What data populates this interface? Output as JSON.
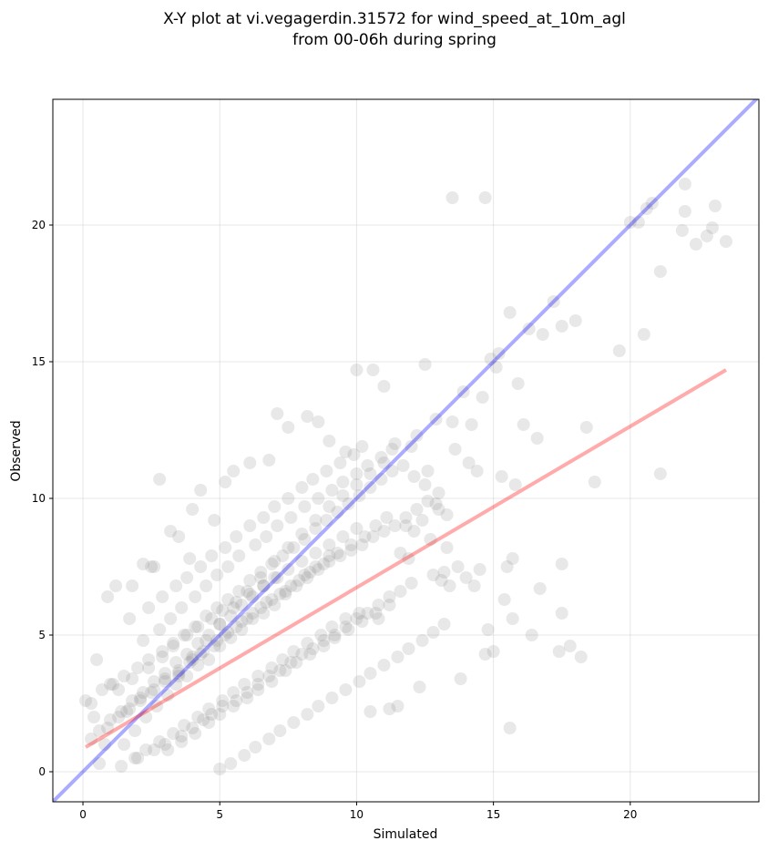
{
  "chart_data": {
    "type": "scatter",
    "title": [
      "X-Y plot at vi.vegagerdin.31572 for wind_speed_at_10m_agl",
      "from 00-06h during spring"
    ],
    "xlabel": "Simulated",
    "ylabel": "Observed",
    "xlim": [
      -1.1,
      24.7
    ],
    "ylim": [
      -1.1,
      24.6
    ],
    "xticks": [
      0,
      5,
      10,
      15,
      20
    ],
    "yticks": [
      0,
      5,
      10,
      15,
      20
    ],
    "grid": true,
    "point_color": "#808080",
    "point_opacity": 0.18,
    "identity_line": {
      "color": "#0000ff",
      "opacity": 0.33,
      "points": [
        [
          -1.1,
          -1.1
        ],
        [
          24.7,
          24.7
        ]
      ]
    },
    "regression_line": {
      "color": "#ff0000",
      "opacity": 0.33,
      "points": [
        [
          0.1,
          0.9
        ],
        [
          23.5,
          14.7
        ]
      ]
    },
    "series": [
      {
        "x": [
          13.5,
          14.7,
          22.0,
          23.1,
          20.8,
          20.6,
          20.3,
          20.0,
          21.9,
          22.0,
          22.4,
          23.5,
          23.0,
          22.8,
          21.1,
          20.5,
          17.2,
          15.6,
          13.5,
          19.6,
          18.0,
          17.5,
          16.8,
          16.3,
          15.2,
          14.9,
          12.5,
          10.0,
          10.6,
          11.0,
          21.1,
          18.7,
          17.5,
          15.7,
          15.5,
          13.2,
          13.1,
          12.8,
          13.4,
          10.1,
          10.8,
          14.5,
          16.7,
          17.8,
          17.4,
          17.5,
          18.2,
          18.4,
          15.6,
          15.7,
          14.8,
          15.0,
          14.7,
          13.8,
          12.3,
          11.5,
          11.2,
          10.5,
          1.8,
          1.2,
          0.9,
          0.5,
          0.3,
          0.1,
          0.4,
          0.8,
          1.0,
          2.8,
          2.2,
          2.5,
          1.7,
          0.6,
          4.3,
          4.0,
          3.2,
          3.5,
          2.6,
          3.9,
          4.8,
          5.5,
          6.8,
          7.1,
          8.2,
          8.6,
          9.0,
          9.6,
          10.2,
          7.5,
          6.1,
          5.2,
          12.2,
          12.9,
          13.9,
          14.2,
          14.6,
          15.1,
          15.9,
          16.1,
          16.6,
          12.0,
          11.4,
          12.6,
          13.6,
          14.1,
          14.4,
          15.3,
          15.8,
          13.0,
          12.4,
          11.8,
          12.1,
          12.7,
          13.3,
          11.6,
          11.9,
          13.7,
          14.0,
          14.3,
          15.4,
          16.4,
          1.5,
          1.9,
          2.3,
          2.7,
          3.1,
          3.4,
          3.8,
          4.2,
          4.6,
          5.0,
          5.4,
          5.8,
          6.2,
          6.6,
          7.0,
          7.4,
          7.8,
          8.2,
          8.6,
          9.0,
          9.4,
          9.8,
          10.2,
          10.6,
          11.0,
          11.4,
          11.8,
          12.2,
          12.6,
          13.0,
          1.3,
          1.8,
          2.4,
          2.9,
          3.3,
          3.7,
          4.1,
          4.5,
          4.9,
          5.3,
          5.7,
          6.1,
          6.5,
          6.9,
          7.3,
          7.7,
          8.1,
          8.5,
          8.9,
          9.3,
          9.7,
          10.1,
          10.5,
          10.9,
          11.3,
          11.7,
          12.1,
          12.5,
          12.9,
          13.3,
          2.0,
          2.6,
          3.0,
          3.6,
          4.0,
          4.4,
          4.7,
          5.1,
          5.6,
          6.0,
          6.4,
          6.8,
          7.2,
          7.6,
          8.0,
          8.4,
          8.8,
          9.2,
          9.6,
          10.0,
          10.4,
          10.8,
          11.2,
          11.6,
          12.0,
          2.2,
          2.8,
          3.2,
          3.6,
          4.1,
          4.5,
          4.9,
          5.3,
          5.7,
          6.3,
          6.7,
          7.1,
          7.6,
          8.1,
          8.6,
          9.1,
          9.5,
          10.0,
          10.4,
          10.9,
          11.3,
          1.6,
          2.1,
          2.5,
          3.0,
          3.5,
          3.9,
          4.3,
          4.8,
          5.2,
          5.6,
          6.0,
          6.5,
          6.9,
          7.4,
          7.9,
          8.3,
          8.8,
          9.3,
          9.8,
          10.3,
          10.7,
          11.1,
          1.4,
          1.9,
          2.3,
          2.8,
          3.3,
          3.7,
          4.2,
          4.6,
          5.1,
          5.5,
          5.9,
          6.4,
          6.9,
          7.3,
          7.7,
          8.2,
          8.7,
          9.1,
          9.6,
          2.4,
          2.9,
          3.4,
          3.8,
          4.3,
          4.7,
          5.2,
          5.6,
          6.1,
          6.6,
          7.0,
          7.5,
          8.0,
          8.4,
          8.9,
          9.4,
          9.9,
          0.9,
          1.3,
          1.7,
          2.1,
          2.6,
          3.0,
          3.5,
          4.0,
          4.4,
          4.9,
          5.3,
          5.8,
          6.2,
          6.7,
          7.2,
          7.6,
          8.1,
          8.5,
          9.0,
          3.1,
          3.6,
          4.1,
          4.6,
          5.0,
          5.5,
          6.0,
          6.4,
          6.9,
          7.4,
          7.8,
          8.3,
          8.8,
          9.2,
          9.7,
          10.2,
          10.7,
          11.2,
          0.7,
          1.1,
          1.5,
          2.0,
          2.4,
          2.9,
          3.3,
          3.8,
          4.2,
          4.7,
          5.1,
          5.6,
          6.1,
          6.6,
          7.1,
          7.5,
          8.0,
          8.5,
          9.0,
          9.5,
          10.0,
          5.0,
          5.4,
          5.9,
          6.3,
          6.8,
          7.2,
          7.7,
          8.2,
          8.6,
          9.1,
          9.6,
          10.1,
          10.5,
          11.0,
          11.5,
          11.9,
          12.4,
          12.8,
          13.2,
          3.5,
          4.0,
          4.5,
          5.0,
          5.5,
          6.0,
          6.5,
          7.0,
          7.5,
          8.0,
          8.5,
          9.0,
          9.5,
          10.0,
          10.5,
          11.0,
          0.3,
          0.6,
          1.0,
          1.4,
          1.8,
          2.2,
          2.6,
          3.0,
          3.4,
          3.8,
          4.2,
          4.6,
          5.0,
          5.4,
          5.8,
          6.2,
          6.6,
          7.0
        ],
        "y": [
          21.0,
          21.0,
          21.5,
          20.7,
          20.8,
          20.6,
          20.1,
          20.1,
          19.8,
          20.5,
          19.3,
          19.4,
          19.9,
          19.6,
          18.3,
          16.0,
          17.2,
          16.8,
          12.8,
          15.4,
          16.5,
          16.3,
          16.0,
          16.2,
          15.3,
          15.1,
          14.9,
          14.7,
          14.7,
          14.1,
          10.9,
          10.6,
          7.6,
          7.8,
          7.5,
          7.3,
          7.0,
          7.2,
          6.8,
          5.8,
          5.6,
          7.4,
          6.7,
          4.6,
          4.4,
          5.8,
          4.2,
          12.6,
          1.6,
          5.6,
          5.2,
          4.4,
          4.3,
          3.4,
          3.1,
          2.4,
          2.3,
          2.2,
          6.8,
          6.8,
          6.4,
          4.1,
          2.5,
          2.6,
          2.0,
          1.0,
          3.2,
          10.7,
          7.6,
          7.5,
          5.6,
          0.3,
          10.3,
          9.6,
          8.8,
          8.6,
          7.5,
          7.8,
          9.2,
          11.0,
          11.4,
          13.1,
          13.0,
          12.8,
          12.1,
          11.7,
          11.9,
          12.6,
          11.3,
          10.6,
          12.3,
          12.9,
          13.9,
          12.7,
          13.7,
          14.8,
          14.2,
          12.7,
          12.2,
          11.9,
          12.0,
          11.0,
          11.8,
          11.3,
          11.0,
          10.8,
          10.5,
          9.6,
          9.2,
          9.0,
          8.8,
          8.5,
          8.2,
          8.0,
          7.8,
          7.5,
          7.1,
          6.8,
          6.3,
          5.0,
          1.0,
          1.5,
          2.0,
          2.4,
          2.8,
          3.2,
          3.5,
          3.9,
          4.1,
          4.6,
          4.9,
          5.2,
          5.6,
          5.8,
          6.1,
          6.5,
          6.8,
          7.1,
          7.4,
          7.7,
          7.9,
          8.1,
          8.3,
          8.6,
          8.8,
          9.0,
          9.3,
          9.6,
          9.9,
          10.2,
          3.0,
          3.4,
          3.8,
          4.2,
          4.6,
          5.0,
          5.3,
          5.7,
          6.0,
          6.3,
          6.6,
          7.0,
          7.3,
          7.6,
          7.9,
          8.2,
          8.5,
          8.9,
          9.2,
          9.5,
          9.8,
          10.1,
          10.4,
          10.7,
          11.0,
          11.2,
          10.8,
          10.5,
          9.8,
          9.4,
          0.5,
          0.8,
          1.0,
          1.3,
          1.6,
          1.9,
          2.1,
          2.4,
          2.6,
          2.9,
          3.2,
          3.5,
          3.7,
          4.0,
          4.3,
          4.5,
          4.8,
          5.0,
          5.3,
          5.6,
          5.8,
          6.1,
          6.4,
          6.6,
          6.9,
          4.8,
          5.2,
          5.6,
          6.0,
          6.4,
          6.8,
          7.2,
          7.5,
          7.9,
          8.3,
          8.6,
          9.0,
          9.3,
          9.7,
          10.0,
          10.3,
          10.6,
          10.9,
          11.2,
          11.5,
          11.8,
          2.2,
          2.6,
          2.9,
          3.3,
          3.6,
          4.0,
          4.3,
          4.6,
          5.0,
          5.3,
          5.6,
          6.0,
          6.3,
          6.6,
          7.0,
          7.3,
          7.6,
          8.0,
          8.3,
          8.6,
          9.0,
          9.3,
          0.2,
          0.5,
          0.8,
          1.1,
          1.4,
          1.7,
          2.0,
          2.3,
          2.6,
          2.9,
          3.2,
          3.5,
          3.8,
          4.1,
          4.4,
          4.7,
          5.0,
          5.3,
          5.6,
          6.0,
          6.4,
          6.8,
          7.1,
          7.5,
          7.9,
          8.2,
          8.6,
          9.0,
          9.3,
          9.7,
          10.0,
          10.4,
          10.7,
          11.0,
          11.3,
          11.6,
          1.6,
          2.0,
          2.3,
          2.7,
          3.0,
          3.4,
          3.7,
          4.1,
          4.4,
          4.8,
          5.1,
          5.5,
          5.8,
          6.2,
          6.5,
          6.8,
          7.2,
          7.5,
          7.9,
          0.8,
          1.1,
          1.4,
          1.8,
          2.1,
          2.4,
          2.7,
          3.0,
          3.3,
          3.7,
          4.0,
          4.3,
          4.6,
          4.9,
          5.2,
          5.5,
          5.8,
          6.1,
          3.0,
          3.2,
          3.5,
          3.8,
          4.1,
          4.4,
          4.7,
          5.0,
          5.3,
          5.6,
          5.9,
          6.2,
          6.5,
          6.8,
          7.1,
          7.4,
          7.7,
          8.0,
          8.3,
          8.6,
          8.9,
          0.1,
          0.3,
          0.6,
          0.9,
          1.2,
          1.5,
          1.8,
          2.1,
          2.4,
          2.7,
          3.0,
          3.3,
          3.6,
          3.9,
          4.2,
          4.5,
          4.8,
          5.1,
          5.4,
          3.5,
          4.2,
          4.8,
          5.4,
          6.0,
          6.6,
          7.1,
          7.7,
          8.2,
          8.7,
          9.2,
          9.7,
          10.1,
          10.5,
          10.9,
          11.3,
          1.2,
          1.5,
          1.9,
          2.2,
          2.6,
          2.9,
          3.3,
          3.6,
          4.0,
          4.3,
          4.7,
          5.0,
          5.4,
          5.7,
          6.1,
          6.4,
          6.8,
          7.1
        ]
      }
    ]
  }
}
